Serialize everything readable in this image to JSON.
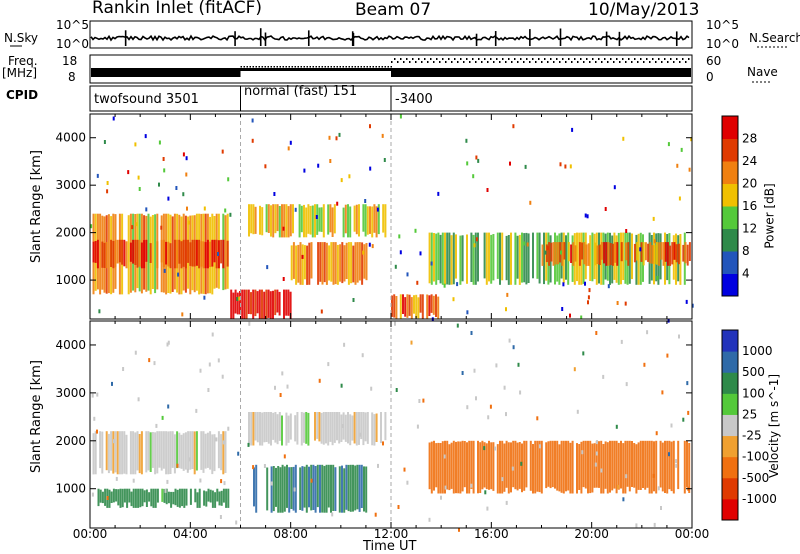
{
  "header": {
    "title": "Rankin Inlet (fitACF)",
    "beam": "Beam 07",
    "date": "10/May/2013"
  },
  "side_labels": {
    "nsky": "N.Sky",
    "nsearch": "N.Search",
    "freq": "Freq.",
    "freq_unit": "[MHz]",
    "nave": "Nave",
    "cpid": "CPID"
  },
  "strip_ticks": {
    "noise_left_top": "10^5",
    "noise_left_bottom": "10^0",
    "noise_right_top": "10^5",
    "noise_right_bottom": "10^0",
    "freq_left_top": "18",
    "freq_left_bottom": "8",
    "freq_right_top": "60",
    "freq_right_bottom": "0"
  },
  "cpid_segments": [
    {
      "label": "twofsound 3501",
      "start": 0,
      "end": 6
    },
    {
      "label": "normal (fast) 151",
      "start": 6,
      "end": 12
    },
    {
      "label": "-3400",
      "start": 12,
      "end": 24
    }
  ],
  "chart_data": [
    {
      "type": "heatmap",
      "panel": "power",
      "ylabel": "Slant Range [km]",
      "xlabel": "Time UT",
      "ylim": [
        180,
        4500
      ],
      "xlim_hours": [
        0,
        24
      ],
      "x_ticks": [
        "00:00",
        "04:00",
        "08:00",
        "12:00",
        "16:00",
        "20:00",
        "00:00"
      ],
      "y_ticks": [
        "1000",
        "2000",
        "3000",
        "4000"
      ],
      "colorbar": {
        "label": "Power [dB]",
        "min": 0,
        "max": 32,
        "ticks": [
          "4",
          "8",
          "12",
          "16",
          "20",
          "24",
          "28"
        ],
        "colors": [
          "#0000e0",
          "#2255bb",
          "#2f8a4a",
          "#54c93a",
          "#f0c000",
          "#f08010",
          "#e03a00",
          "#e00000"
        ]
      },
      "echo_regions": [
        {
          "t0": 0.1,
          "t1": 5.5,
          "r0": 700,
          "r1": 2400,
          "level": 20
        },
        {
          "t0": 0.1,
          "t1": 5.5,
          "r0": 1250,
          "r1": 1850,
          "level": 26
        },
        {
          "t0": 5.5,
          "t1": 8.0,
          "r0": 180,
          "r1": 800,
          "level": 30
        },
        {
          "t0": 6.3,
          "t1": 11.8,
          "r0": 1900,
          "r1": 2600,
          "level": 18
        },
        {
          "t0": 8.0,
          "t1": 11.0,
          "r0": 900,
          "r1": 1800,
          "level": 22
        },
        {
          "t0": 12.0,
          "t1": 14.0,
          "r0": 180,
          "r1": 700,
          "level": 24
        },
        {
          "t0": 13.5,
          "t1": 23.9,
          "r0": 900,
          "r1": 2000,
          "level": 14
        },
        {
          "t0": 18.0,
          "t1": 23.9,
          "r0": 1300,
          "r1": 1800,
          "level": 24
        }
      ]
    },
    {
      "type": "heatmap",
      "panel": "velocity",
      "ylabel": "Slant Range [km]",
      "xlabel": "Time UT",
      "ylim": [
        180,
        4500
      ],
      "xlim_hours": [
        0,
        24
      ],
      "x_ticks": [
        "00:00",
        "04:00",
        "08:00",
        "12:00",
        "16:00",
        "20:00",
        "00:00"
      ],
      "y_ticks": [
        "1000",
        "2000",
        "3000",
        "4000"
      ],
      "colorbar": {
        "label": "Velocity [m s^-1]",
        "ticks": [
          "1000",
          "500",
          "100",
          "25",
          "-25",
          "-100",
          "-500",
          "-1000"
        ],
        "colors": [
          "#2233bb",
          "#2f6aa8",
          "#2f8a4a",
          "#54c93a",
          "#c8c8c8",
          "#f0a030",
          "#f07010",
          "#e03a00",
          "#e00000"
        ]
      },
      "echo_regions": [
        {
          "t0": 0.1,
          "t1": 5.5,
          "r0": 1300,
          "r1": 2200,
          "level": "ground"
        },
        {
          "t0": 0.3,
          "t1": 5.5,
          "r0": 600,
          "r1": 1000,
          "level": 100
        },
        {
          "t0": 6.3,
          "t1": 11.8,
          "r0": 1900,
          "r1": 2600,
          "level": "ground"
        },
        {
          "t0": 6.5,
          "t1": 11.0,
          "r0": 500,
          "r1": 1500,
          "level": 200
        },
        {
          "t0": 13.5,
          "t1": 23.9,
          "r0": 900,
          "r1": 2000,
          "level": -300
        }
      ]
    }
  ]
}
